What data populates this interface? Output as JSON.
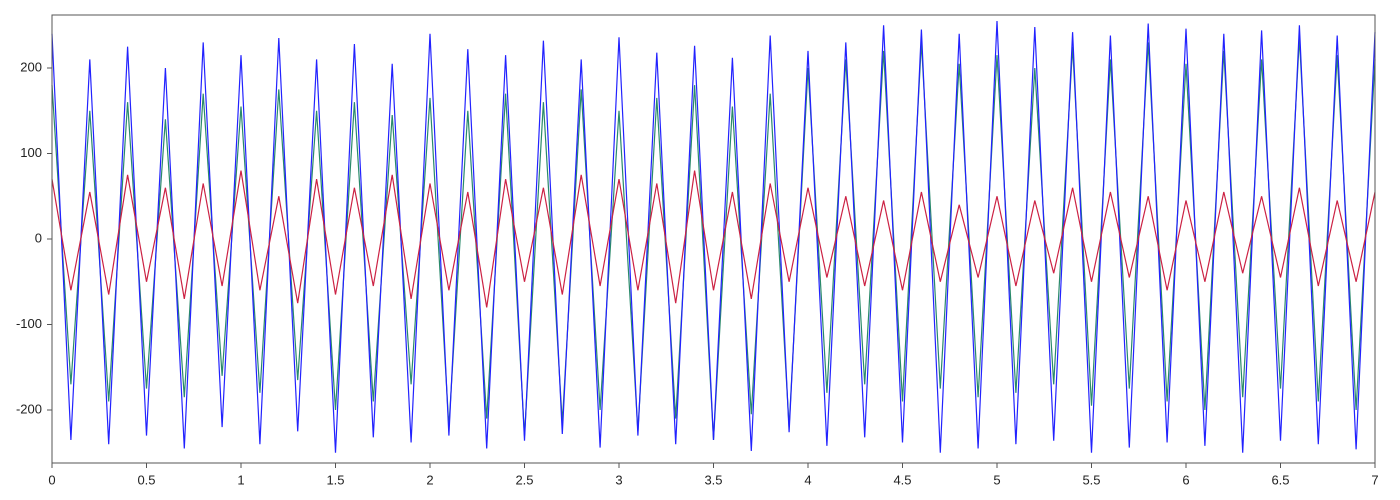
{
  "chart_data": {
    "type": "line",
    "x": [
      0,
      0.1,
      0.2,
      0.3,
      0.4,
      0.5,
      0.6,
      0.7,
      0.8,
      0.9,
      1,
      1.1,
      1.2,
      1.3,
      1.4,
      1.5,
      1.6,
      1.7,
      1.8,
      1.9,
      2,
      2.1,
      2.2,
      2.3,
      2.4,
      2.5,
      2.6,
      2.7,
      2.8,
      2.9,
      3,
      3.1,
      3.2,
      3.3,
      3.4,
      3.5,
      3.6,
      3.7,
      3.8,
      3.9,
      4,
      4.1,
      4.2,
      4.3,
      4.4,
      4.5,
      4.6,
      4.7,
      4.8,
      4.9,
      5,
      5.1,
      5.2,
      5.3,
      5.4,
      5.5,
      5.6,
      5.7,
      5.8,
      5.9,
      6,
      6.1,
      6.2,
      6.3,
      6.4,
      6.5,
      6.6,
      6.7,
      6.8,
      6.9,
      7
    ],
    "series": [
      {
        "color": "#2a8a6a",
        "values": [
          180,
          -170,
          150,
          -190,
          160,
          -175,
          140,
          -185,
          170,
          -160,
          155,
          -180,
          175,
          -165,
          150,
          -200,
          160,
          -190,
          145,
          -170,
          165,
          -220,
          150,
          -210,
          170,
          -230,
          160,
          -215,
          175,
          -200,
          150,
          -225,
          165,
          -210,
          180,
          -235,
          155,
          -205,
          170,
          -220,
          200,
          -180,
          210,
          -170,
          220,
          -190,
          230,
          -175,
          205,
          -185,
          215,
          -180,
          200,
          -170,
          225,
          -195,
          210,
          -175,
          230,
          -190,
          205,
          -200,
          220,
          -185,
          210,
          -175,
          235,
          -190,
          215,
          -200,
          210
        ]
      },
      {
        "color": "#2222ff",
        "values": [
          240,
          -235,
          210,
          -240,
          225,
          -230,
          200,
          -245,
          230,
          -220,
          215,
          -240,
          235,
          -225,
          210,
          -250,
          228,
          -232,
          205,
          -238,
          240,
          -230,
          222,
          -245,
          215,
          -236,
          232,
          -228,
          210,
          -244,
          236,
          -230,
          218,
          -240,
          226,
          -235,
          212,
          -248,
          238,
          -226,
          220,
          -242,
          230,
          -232,
          250,
          -238,
          245,
          -250,
          240,
          -245,
          255,
          -240,
          248,
          -236,
          242,
          -250,
          238,
          -244,
          252,
          -238,
          246,
          -242,
          240,
          -250,
          244,
          -236,
          250,
          -240,
          238,
          -246,
          242
        ]
      },
      {
        "color": "#cc2244",
        "values": [
          70,
          -60,
          55,
          -65,
          75,
          -50,
          60,
          -70,
          65,
          -55,
          80,
          -60,
          50,
          -75,
          70,
          -65,
          60,
          -55,
          75,
          -70,
          65,
          -60,
          55,
          -80,
          70,
          -50,
          60,
          -65,
          75,
          -55,
          70,
          -60,
          65,
          -75,
          80,
          -60,
          55,
          -70,
          65,
          -50,
          60,
          -45,
          50,
          -55,
          45,
          -60,
          55,
          -50,
          40,
          -45,
          50,
          -55,
          45,
          -40,
          60,
          -50,
          55,
          -45,
          50,
          -60,
          45,
          -50,
          55,
          -40,
          50,
          -45,
          60,
          -55,
          45,
          -50,
          55
        ]
      }
    ],
    "xlim": [
      0,
      7
    ],
    "xticks": [
      0,
      0.5,
      1,
      1.5,
      2,
      2.5,
      3,
      3.5,
      4,
      4.5,
      5,
      5.5,
      6,
      6.5,
      7
    ],
    "ylim": [
      -262,
      262
    ],
    "yticks": [
      -200,
      -100,
      0,
      100,
      200
    ]
  }
}
